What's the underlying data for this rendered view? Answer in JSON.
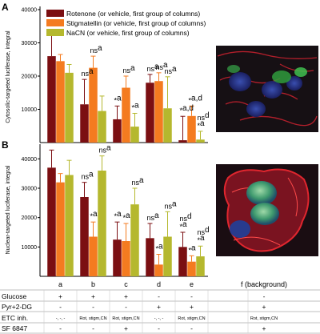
{
  "colors": {
    "series": [
      "#7b0f12",
      "#f47b20",
      "#b5b82e"
    ],
    "error_bar": [
      "#7b0f12",
      "#f47b20",
      "#b5b82e"
    ],
    "image_bg": "#161014"
  },
  "legend": [
    "Rotenone (or vehicle, first group of columns)",
    "Stigmatellin (or vehicle, first group of columns)",
    "NaCN (or vehicle, first group of columns)"
  ],
  "chart_data": [
    {
      "type": "bar",
      "panel_label": "A",
      "ylabel": "Cytosolic-targeted luciferase, integral",
      "ylim": [
        0,
        40000
      ],
      "yticks": [
        "10000",
        "20000",
        "30000",
        "40000"
      ],
      "categories": [
        "a",
        "b",
        "c",
        "d",
        "e"
      ],
      "series": [
        {
          "name": "Rotenone (or vehicle, first group of columns)",
          "values": [
            26000,
            11500,
            7000,
            18000,
            700
          ],
          "errors": [
            8000,
            7500,
            4000,
            2500,
            7200
          ]
        },
        {
          "name": "Stigmatellin (or vehicle, first group of columns)",
          "values": [
            24500,
            22500,
            16500,
            18500,
            8000
          ],
          "errors": [
            2000,
            3500,
            3500,
            2500,
            3000
          ]
        },
        {
          "name": "NaCN (or vehicle, first group of columns)",
          "values": [
            21000,
            9500,
            4800,
            10300,
            900
          ],
          "errors": [
            2500,
            4500,
            4000,
            9500,
            2500
          ]
        }
      ],
      "annotations": [
        {
          "group": 1,
          "series": 0,
          "lines": [
            [
              "ns",
              "a"
            ]
          ]
        },
        {
          "group": 1,
          "series": 1,
          "lines": [
            [
              "ns",
              "a"
            ]
          ]
        },
        {
          "group": 2,
          "series": 0,
          "lines": [
            [
              "*",
              "a"
            ]
          ]
        },
        {
          "group": 2,
          "series": 1,
          "lines": [
            [
              "ns",
              "a"
            ]
          ]
        },
        {
          "group": 2,
          "series": 2,
          "lines": [
            [
              "*",
              "a"
            ]
          ]
        },
        {
          "group": 3,
          "series": 0,
          "lines": [
            [
              "ns",
              "a"
            ]
          ]
        },
        {
          "group": 3,
          "series": 1,
          "lines": [
            [
              "ns",
              "a"
            ]
          ]
        },
        {
          "group": 3,
          "series": 2,
          "lines": [
            [
              "ns",
              "a"
            ]
          ]
        },
        {
          "group": 4,
          "series": 0,
          "lines": [
            [
              "*",
              "a,d"
            ]
          ]
        },
        {
          "group": 4,
          "series": 1,
          "lines": [
            [
              "*",
              "a,d"
            ]
          ]
        },
        {
          "group": 4,
          "series": 2,
          "lines": [
            [
              "ns",
              "d"
            ],
            [
              "*",
              "a"
            ]
          ]
        }
      ]
    },
    {
      "type": "bar",
      "panel_label": "B",
      "ylabel": "Nuclear-targeted luciferase, integral",
      "ylim": [
        0,
        45000
      ],
      "yticks": [
        "10000",
        "20000",
        "30000",
        "40000"
      ],
      "categories": [
        "a",
        "b",
        "c",
        "d",
        "e"
      ],
      "series": [
        {
          "name": "Rotenone (or vehicle, first group of columns)",
          "values": [
            37000,
            27000,
            12500,
            13000,
            10000
          ],
          "errors": [
            6000,
            5000,
            6000,
            5000,
            5000
          ]
        },
        {
          "name": "Stigmatellin (or vehicle, first group of columns)",
          "values": [
            32000,
            13500,
            12000,
            4000,
            5000
          ],
          "errors": [
            3000,
            5000,
            6000,
            3500,
            2000
          ]
        },
        {
          "name": "NaCN (or vehicle, first group of columns)",
          "values": [
            34500,
            36000,
            24500,
            13500,
            6800
          ],
          "errors": [
            5000,
            5000,
            5500,
            8500,
            3500
          ]
        }
      ],
      "annotations": [
        {
          "group": 1,
          "series": 0,
          "lines": [
            [
              "ns",
              "a"
            ]
          ]
        },
        {
          "group": 1,
          "series": 1,
          "lines": [
            [
              "*",
              "a"
            ]
          ]
        },
        {
          "group": 1,
          "series": 2,
          "lines": [
            [
              "ns",
              "a"
            ]
          ]
        },
        {
          "group": 2,
          "series": 0,
          "lines": [
            [
              "*",
              "a"
            ]
          ]
        },
        {
          "group": 2,
          "series": 1,
          "lines": [
            [
              "*",
              "a"
            ]
          ]
        },
        {
          "group": 2,
          "series": 2,
          "lines": [
            [
              "ns",
              "a"
            ]
          ]
        },
        {
          "group": 3,
          "series": 0,
          "lines": [
            [
              "ns",
              "a"
            ]
          ]
        },
        {
          "group": 3,
          "series": 1,
          "lines": [
            [
              "*",
              "a"
            ]
          ]
        },
        {
          "group": 3,
          "series": 2,
          "lines": [
            [
              "ns",
              "a"
            ]
          ]
        },
        {
          "group": 4,
          "series": 0,
          "lines": [
            [
              "ns",
              "d"
            ],
            [
              "*",
              "a"
            ]
          ]
        },
        {
          "group": 4,
          "series": 1,
          "lines": [
            [
              "*",
              "a"
            ]
          ]
        },
        {
          "group": 4,
          "series": 2,
          "lines": [
            [
              "ns",
              "d"
            ],
            [
              "*",
              "a"
            ]
          ]
        }
      ]
    }
  ],
  "conditions_table": {
    "group_labels": [
      "a",
      "b",
      "c",
      "d",
      "e",
      "f (background)"
    ],
    "rows": [
      {
        "label": "Glucose",
        "values": [
          "+",
          "+",
          "+",
          "-",
          "-",
          "-"
        ]
      },
      {
        "label": "Pyr+2-DG",
        "values": [
          "-",
          "-",
          "-",
          "+",
          "+",
          "+"
        ]
      },
      {
        "label": "ETC inh.",
        "values": [
          "-, -, -",
          "Rot, stigm,CN",
          "Rot, stigm,CN",
          "-, -, -",
          "Rot, stigm,CN",
          "Rot, stigm,CN"
        ]
      },
      {
        "label": "SF 6847",
        "values": [
          "-",
          "-",
          "+",
          "-",
          "-",
          "+"
        ]
      }
    ]
  }
}
